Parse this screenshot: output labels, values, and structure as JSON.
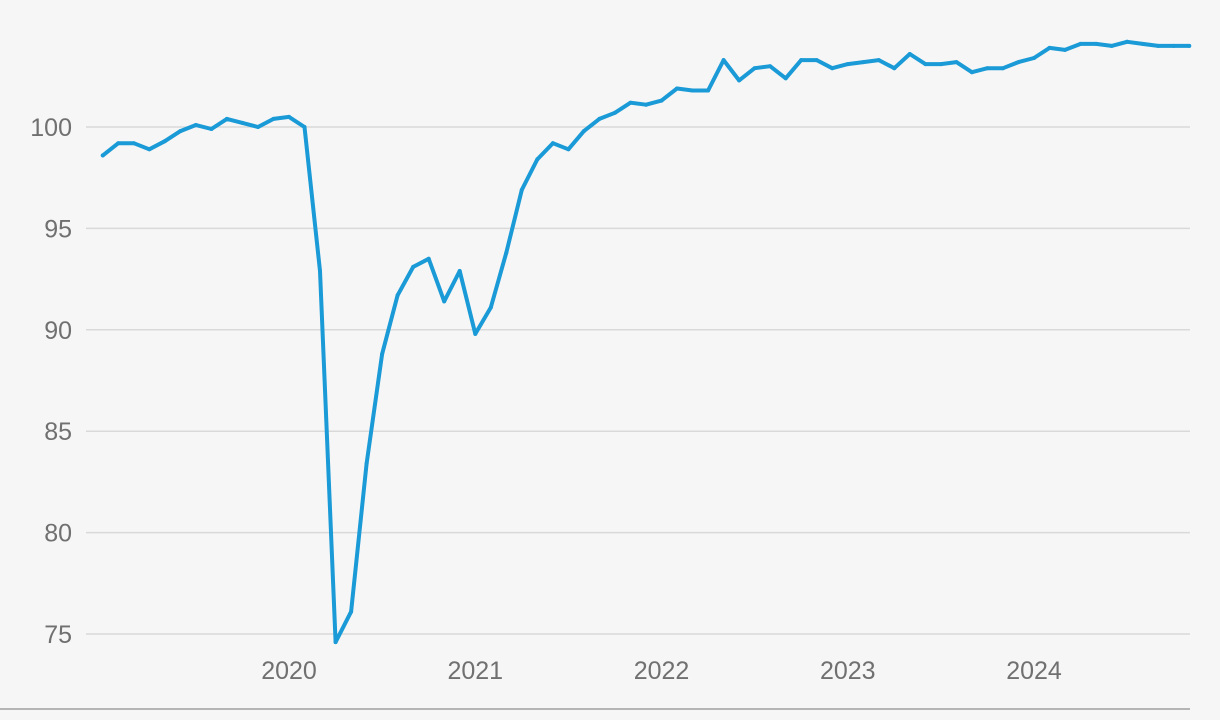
{
  "chart_data": {
    "type": "line",
    "title": "",
    "xlabel": "",
    "ylabel": "",
    "ylim": [
      75,
      103.6
    ],
    "xlim": [
      "2019-01",
      "2024-11"
    ],
    "grid": true,
    "legend": "none",
    "y_ticks": [
      75,
      80,
      85,
      90,
      95,
      100
    ],
    "y_tick_labels": [
      "75",
      "80",
      "85",
      "90",
      "95",
      "100"
    ],
    "x_ticks": [
      "2020-01",
      "2021-01",
      "2022-01",
      "2023-01",
      "2024-01"
    ],
    "x_tick_labels": [
      "2020",
      "2021",
      "2022",
      "2023",
      "2024"
    ],
    "colors": {
      "line": "#1a9ad6",
      "grid": "#d9d9d9",
      "axis": "#b5b5b5",
      "text": "#707070",
      "background": "#f6f6f6"
    },
    "series": [
      {
        "x": [
          "2019-01",
          "2019-02",
          "2019-03",
          "2019-04",
          "2019-05",
          "2019-06",
          "2019-07",
          "2019-08",
          "2019-09",
          "2019-10",
          "2019-11",
          "2019-12",
          "2020-01",
          "2020-02",
          "2020-03",
          "2020-04",
          "2020-05",
          "2020-06",
          "2020-07",
          "2020-08",
          "2020-09",
          "2020-10",
          "2020-11",
          "2020-12",
          "2021-01",
          "2021-02",
          "2021-03",
          "2021-04",
          "2021-05",
          "2021-06",
          "2021-07",
          "2021-08",
          "2021-09",
          "2021-10",
          "2021-11",
          "2021-12",
          "2022-01",
          "2022-02",
          "2022-03",
          "2022-04",
          "2022-05",
          "2022-06",
          "2022-07",
          "2022-08",
          "2022-09",
          "2022-10",
          "2022-11",
          "2022-12",
          "2023-01",
          "2023-02",
          "2023-03",
          "2023-04",
          "2023-05",
          "2023-06",
          "2023-07",
          "2023-08",
          "2023-09",
          "2023-10",
          "2023-11",
          "2023-12",
          "2024-01",
          "2024-02",
          "2024-03",
          "2024-04",
          "2024-05",
          "2024-06",
          "2024-07",
          "2024-08",
          "2024-09",
          "2024-10",
          "2024-11"
        ],
        "values": [
          98.6,
          99.2,
          99.2,
          98.9,
          99.3,
          99.8,
          100.1,
          99.9,
          100.4,
          100.2,
          100.0,
          100.4,
          100.5,
          100.0,
          92.9,
          74.6,
          76.1,
          83.4,
          88.8,
          91.7,
          93.1,
          93.5,
          91.4,
          92.9,
          89.8,
          91.1,
          93.8,
          96.9,
          98.4,
          99.2,
          98.9,
          99.8,
          100.4,
          100.7,
          101.2,
          101.1,
          101.3,
          101.9,
          101.8,
          101.8,
          103.3,
          102.3,
          102.9,
          103.0,
          102.4,
          103.3,
          103.3,
          102.9,
          103.1,
          103.2,
          103.3,
          102.9,
          103.6,
          103.1,
          103.1,
          103.2,
          102.7,
          102.9,
          102.9,
          103.2,
          103.4,
          103.9,
          103.8,
          104.1,
          104.1,
          104.0,
          104.2,
          104.1,
          104.0,
          104.0,
          104.0
        ]
      }
    ]
  }
}
